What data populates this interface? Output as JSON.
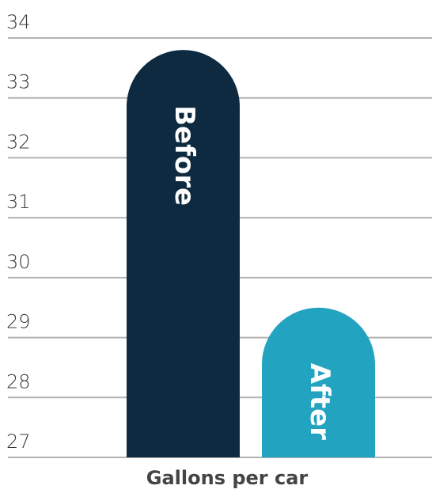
{
  "chart_data": {
    "type": "bar",
    "x_label": "Gallons  per car",
    "categories": [
      "Before",
      "After"
    ],
    "values": [
      33.8,
      29.5
    ],
    "colors": [
      "#0d2a40",
      "#22a3bf"
    ],
    "ylim": [
      27,
      34
    ],
    "yticks": [
      27,
      28,
      29,
      30,
      31,
      32,
      33,
      34
    ],
    "grid": true
  }
}
